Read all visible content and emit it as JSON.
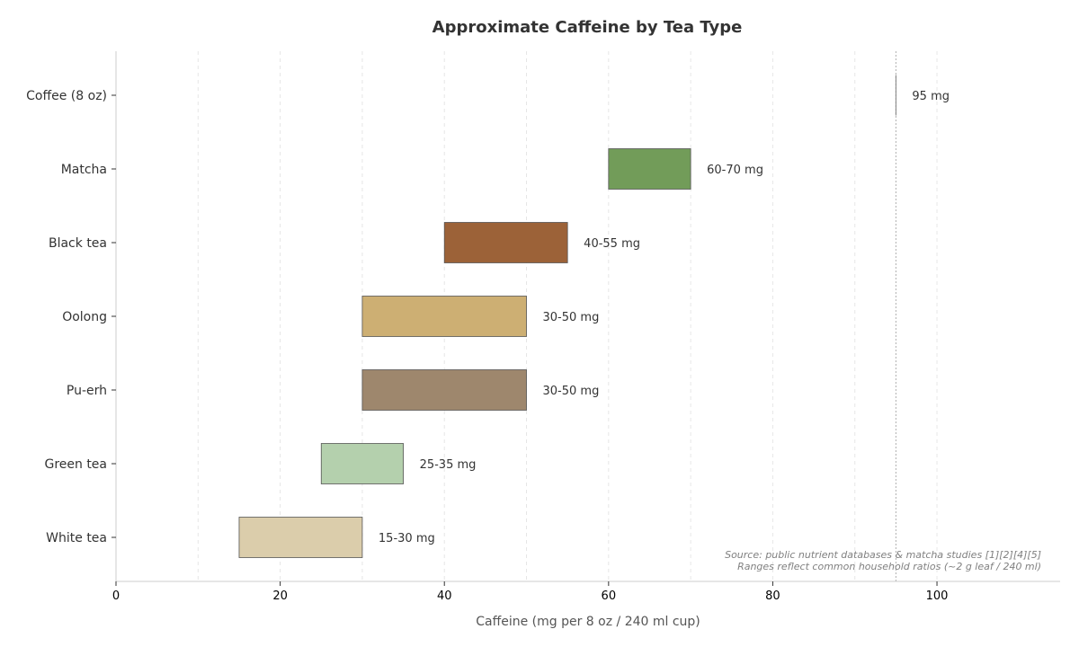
{
  "chart_data": {
    "type": "bar",
    "orientation": "horizontal-range",
    "title": "Approximate Caffeine by Tea Type",
    "xlabel": "Caffeine (mg per 8 oz / 240 ml cup)",
    "ylabel": "",
    "xlim": [
      0,
      115
    ],
    "xticks": [
      0,
      20,
      40,
      60,
      80,
      100
    ],
    "grid": "x-dashed",
    "legend": "none",
    "categories": [
      "White tea",
      "Green tea",
      "Pu-erh",
      "Oolong",
      "Black tea",
      "Matcha",
      "Coffee (8 oz)"
    ],
    "ranges": [
      {
        "category": "White tea",
        "low": 15,
        "high": 30,
        "label": "15-30 mg",
        "color": "#dbcdab"
      },
      {
        "category": "Green tea",
        "low": 25,
        "high": 35,
        "label": "25-35 mg",
        "color": "#b4d0ad"
      },
      {
        "category": "Pu-erh",
        "low": 30,
        "high": 50,
        "label": "30-50 mg",
        "color": "#9e876d"
      },
      {
        "category": "Oolong",
        "low": 30,
        "high": 50,
        "label": "30-50 mg",
        "color": "#cdaf73"
      },
      {
        "category": "Black tea",
        "low": 40,
        "high": 55,
        "label": "40-55 mg",
        "color": "#9c6238"
      },
      {
        "category": "Matcha",
        "low": 60,
        "high": 70,
        "label": "60-70 mg",
        "color": "#729c59"
      },
      {
        "category": "Coffee (8 oz)",
        "low": 95,
        "high": 95,
        "label": "95 mg",
        "color": "#808080"
      }
    ],
    "reference_line": {
      "x": 95
    },
    "annotations": [
      "Source: public nutrient databases & matcha studies [1][2][4][5]",
      "Ranges reflect common household ratios (~2 g leaf / 240 ml)"
    ]
  }
}
